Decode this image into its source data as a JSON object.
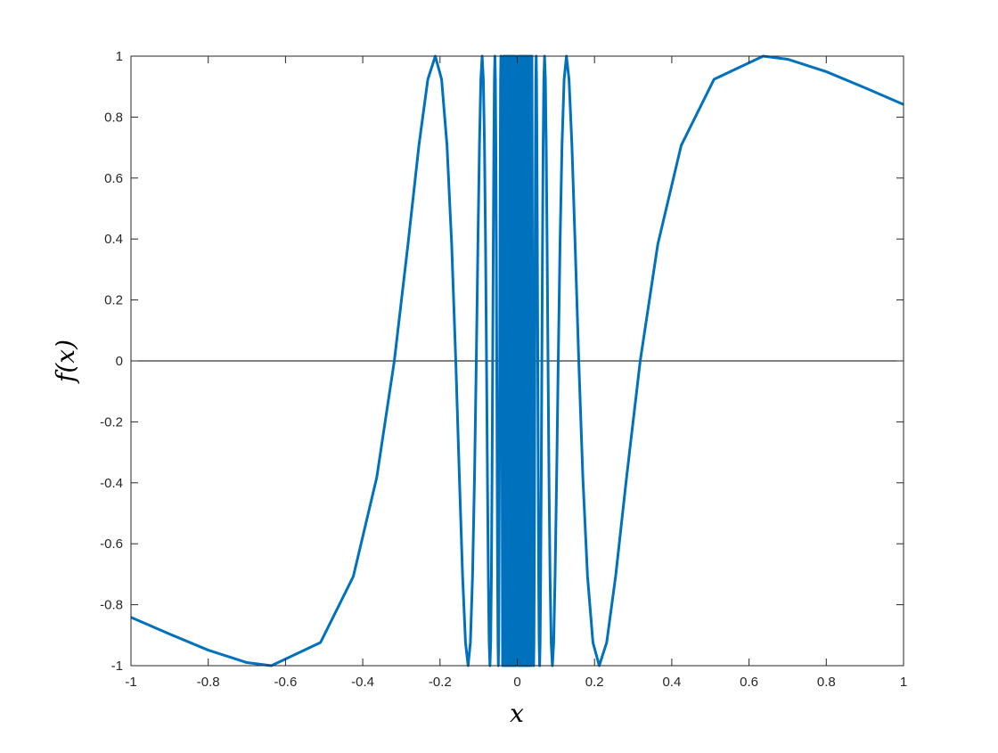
{
  "chart_data": {
    "type": "line",
    "title": "",
    "xlabel": "x",
    "ylabel": "f(x)",
    "xlim": [
      -1,
      1
    ],
    "ylim": [
      -1,
      1
    ],
    "x_ticks": [
      "-1",
      "-0.8",
      "-0.6",
      "-0.4",
      "-0.2",
      "0",
      "0.2",
      "0.4",
      "0.6",
      "0.8",
      "1"
    ],
    "y_ticks": [
      "-1",
      "-0.8",
      "-0.6",
      "-0.4",
      "-0.2",
      "0",
      "0.2",
      "0.4",
      "0.6",
      "0.8",
      "1"
    ],
    "grid": false,
    "box": true,
    "reference_line_y": 0,
    "colors": {
      "series": "#0072BD",
      "reference": "#000000",
      "axes": "#262626"
    },
    "series": [
      {
        "x": [
          -1,
          -0.9,
          -0.8,
          -0.7,
          -0.6366,
          -0.5093,
          -0.4244,
          -0.3638,
          -0.3183,
          -0.2829,
          -0.2546,
          -0.2315,
          -0.2122,
          -0.1959,
          -0.1819,
          -0.1698,
          -0.1592,
          -0.1498,
          -0.1415,
          -0.134,
          -0.1273,
          -0.1213,
          -0.1158,
          -0.1107,
          -0.1061,
          -0.1019,
          -0.0979,
          -0.0943,
          -0.0909,
          -0.0878,
          -0.0849,
          -0.0821,
          -0.0796,
          -0.0772,
          -0.0749,
          -0.0728,
          -0.0707,
          -0.0688,
          -0.067,
          -0.0653,
          -0.0637,
          -0.0621,
          -0.0606,
          -0.0592,
          -0.0579,
          -0.0566,
          -0.0554,
          -0.0542,
          -0.0531,
          -0.052,
          -0.0509,
          -0.0499,
          -0.049,
          -0.048,
          -0.0472,
          -0.0463,
          -0.0455,
          -0.0447,
          -0.0439,
          -0.0432,
          -0.0424,
          -0.0417,
          -0.0411,
          -0.0404,
          -0.0398,
          -0.038,
          -0.036,
          -0.034,
          -0.032,
          -0.03,
          -0.028,
          -0.026,
          -0.024,
          -0.022,
          -0.02,
          -0.018,
          -0.016,
          -0.014,
          -0.012,
          -0.01,
          -0.008,
          -0.006,
          -0.004,
          -0.002,
          0.002,
          0.004,
          0.006,
          0.008,
          0.01,
          0.012,
          0.014,
          0.016,
          0.018,
          0.02,
          0.022,
          0.024,
          0.026,
          0.028,
          0.03,
          0.032,
          0.034,
          0.036,
          0.038,
          0.0398,
          0.0404,
          0.0411,
          0.0417,
          0.0424,
          0.0432,
          0.0439,
          0.0447,
          0.0455,
          0.0463,
          0.0472,
          0.048,
          0.049,
          0.0499,
          0.0509,
          0.052,
          0.0531,
          0.0542,
          0.0554,
          0.0566,
          0.0579,
          0.0592,
          0.0606,
          0.0621,
          0.0637,
          0.0653,
          0.067,
          0.0688,
          0.0707,
          0.0728,
          0.0749,
          0.0772,
          0.0796,
          0.0821,
          0.0849,
          0.0878,
          0.0909,
          0.0943,
          0.0979,
          0.1019,
          0.1061,
          0.1107,
          0.1158,
          0.1213,
          0.1273,
          0.134,
          0.1415,
          0.1498,
          0.1592,
          0.1698,
          0.1819,
          0.1959,
          0.2122,
          0.2315,
          0.2546,
          0.2829,
          0.3183,
          0.3638,
          0.4244,
          0.5093,
          0.6366,
          0.7,
          0.8,
          0.9,
          1
        ],
        "y": [
          -0.8415,
          -0.8961,
          -0.949,
          -0.9899,
          -1,
          -0.9239,
          -0.7071,
          -0.3827,
          0,
          0.3827,
          0.7071,
          0.9239,
          1,
          0.9239,
          0.7071,
          0.3827,
          0,
          -0.3827,
          -0.7071,
          -0.9239,
          -1,
          -0.9239,
          -0.7071,
          -0.3827,
          0,
          0.3827,
          0.7071,
          0.9239,
          1,
          0.9239,
          0.7071,
          0.3827,
          0,
          -0.3827,
          -0.7071,
          -0.9239,
          -1,
          -0.9239,
          -0.7071,
          -0.3827,
          0,
          0.3827,
          0.7071,
          0.9239,
          1,
          0.9239,
          0.7071,
          0.3827,
          0,
          -0.3827,
          -0.7071,
          -0.9239,
          -1,
          -0.9239,
          -0.7071,
          -0.3827,
          0,
          0.3827,
          0.7071,
          0.9239,
          1,
          0.9239,
          0.7071,
          0.3827,
          0,
          -1,
          1,
          -1,
          1,
          -1,
          1,
          -1,
          1,
          -1,
          1,
          -1,
          1,
          -1,
          1,
          -1,
          1,
          -1,
          1,
          -1,
          1,
          -1,
          1,
          -1,
          1,
          -1,
          1,
          -1,
          1,
          -1,
          1,
          -1,
          1,
          -1,
          1,
          -1,
          1,
          -1,
          1,
          0,
          -0.3827,
          -0.7071,
          -0.9239,
          -1,
          -0.9239,
          -0.7071,
          -0.3827,
          0,
          0.3827,
          0.7071,
          0.9239,
          1,
          0.9239,
          0.7071,
          0.3827,
          0,
          -0.3827,
          -0.7071,
          -0.9239,
          -1,
          -0.9239,
          -0.7071,
          -0.3827,
          0,
          0.3827,
          0.7071,
          0.9239,
          1,
          0.9239,
          0.7071,
          0.3827,
          0,
          -0.3827,
          -0.7071,
          -0.9239,
          -1,
          -0.9239,
          -0.7071,
          -0.3827,
          0,
          0.3827,
          0.7071,
          0.9239,
          1,
          0.9239,
          0.7071,
          0.3827,
          0,
          -0.3827,
          -0.7071,
          -0.9239,
          -1,
          -0.9239,
          -0.7071,
          -0.3827,
          0,
          0.3827,
          0.7071,
          0.9239,
          1,
          0.9899,
          0.949,
          0.8961,
          0.8415
        ]
      }
    ]
  }
}
